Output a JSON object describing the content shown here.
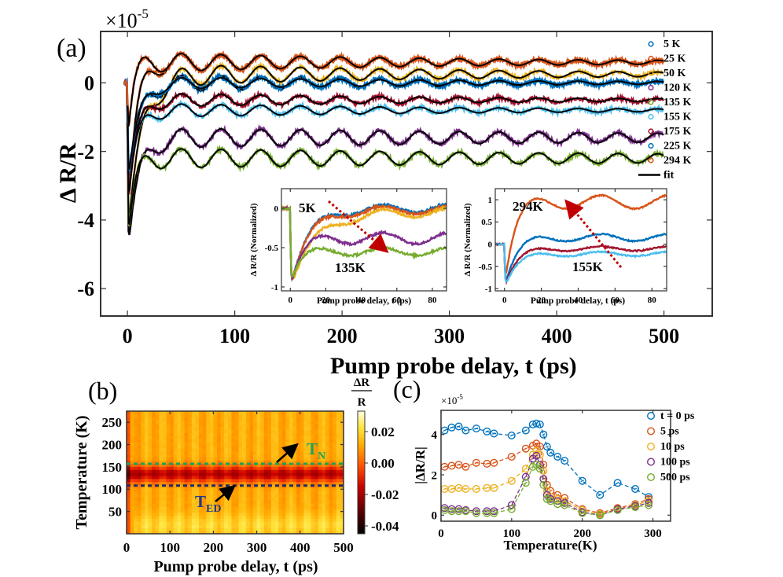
{
  "colors": {
    "5K": "#0072BD",
    "25K": "#D95319",
    "50K": "#EDB120",
    "120K": "#7E2F8E",
    "135K": "#77AC30",
    "155K": "#4DBEEE",
    "175K": "#A2142F",
    "225K": "#0072BD",
    "294K": "#D95319",
    "fit": "#000000",
    "TN_line": "#1aa35a",
    "TED_line": "#1f2a6b",
    "TN_label": "#1aa35a",
    "TED_label": "#1f3a8a",
    "arrow_red": "#c00000"
  },
  "chart_data": [
    {
      "id": "a",
      "panel_label": "(a)",
      "type": "line",
      "xlabel": "Pump probe delay, t (ps)",
      "ylabel": "Δ R/R",
      "scale_label": "×10",
      "scale_exponent": "-5",
      "xlim": [
        -25,
        545
      ],
      "ylim": [
        -6.8,
        1.5
      ],
      "xticks": [
        0,
        100,
        200,
        300,
        400,
        500
      ],
      "yticks": [
        -6,
        -4,
        -2,
        0
      ],
      "xtick_labels": [
        "0",
        "100",
        "200",
        "300",
        "400",
        "500"
      ],
      "ytick_labels": [
        "-6",
        "-4",
        "-2",
        "0"
      ],
      "series": [
        {
          "name": "5 K",
          "marker": "o",
          "color": "#0072BD",
          "dip": -3.4,
          "rise": 2.6,
          "rise_tau": 10,
          "baseline": 0.0,
          "amp": 0.28,
          "period": 37,
          "decay": 300
        },
        {
          "name": "25 K",
          "marker": "s",
          "color": "#D95319",
          "dip": -4.0,
          "rise": 3.4,
          "rise_tau": 8,
          "baseline": 0.6,
          "amp": 0.3,
          "period": 37,
          "decay": 300
        },
        {
          "name": "50 K",
          "marker": "^",
          "color": "#EDB120",
          "dip": -4.4,
          "rise": 3.2,
          "rise_tau": 14,
          "baseline": 0.25,
          "amp": 0.35,
          "period": 37,
          "decay": 300
        },
        {
          "name": "120 K",
          "marker": "d",
          "color": "#7E2F8E",
          "dip": -5.0,
          "rise": 4.5,
          "rise_tau": 10,
          "baseline": -1.6,
          "amp": 0.3,
          "period": 37,
          "decay": 600
        },
        {
          "name": "135 K",
          "marker": "*",
          "color": "#77AC30",
          "dip": -4.8,
          "rise": 4.0,
          "rise_tau": 6,
          "baseline": -2.2,
          "amp": 0.3,
          "period": 37,
          "decay": 600
        },
        {
          "name": "155 K",
          "marker": "+",
          "color": "#4DBEEE",
          "dip": -3.5,
          "rise": 3.2,
          "rise_tau": 8,
          "baseline": -0.8,
          "amp": 0.22,
          "period": 37,
          "decay": 300
        },
        {
          "name": "175 K",
          "marker": "x",
          "color": "#A2142F",
          "dip": -3.8,
          "rise": 3.6,
          "rise_tau": 8,
          "baseline": -0.5,
          "amp": 0.22,
          "period": 37,
          "decay": 300
        },
        {
          "name": "225 K",
          "marker": "p",
          "color": "#0072BD",
          "dip": -3.0,
          "rise": 2.9,
          "rise_tau": 10,
          "baseline": 0.0,
          "amp": 0.2,
          "period": 37,
          "decay": 300
        },
        {
          "name": "294 K",
          "marker": "h",
          "color": "#D95319",
          "dip": -1.8,
          "rise": 2.5,
          "rise_tau": 5,
          "baseline": 0.6,
          "amp": 0.3,
          "period": 37,
          "decay": 300
        }
      ],
      "legend": [
        "5 K",
        "25 K",
        "50 K",
        "120 K",
        "135 K",
        "155 K",
        "175 K",
        "225 K",
        "294 K",
        "fit"
      ],
      "legend_location": "top-right",
      "insets": [
        {
          "type": "line",
          "xlabel": "Pump probe delay, t (ps)",
          "ylabel": "Δ R/R (Normalized)",
          "xlim": [
            -5,
            88
          ],
          "ylim": [
            -1.05,
            0.25
          ],
          "xticks": [
            0,
            20,
            40,
            60,
            80
          ],
          "yticks": [
            -1,
            -0.5,
            0
          ],
          "xtick_labels": [
            "0",
            "20",
            "40",
            "60",
            "80"
          ],
          "ytick_labels": [
            "-1",
            "-0.5",
            "0"
          ],
          "annotations": [
            "5K",
            "135K"
          ],
          "series": [
            {
              "name": "5 K",
              "color": "#0072BD",
              "dip": -1.0,
              "rise": 1.0,
              "rise_tau": 10,
              "baseline": 0.0,
              "amp": 0.05,
              "period": 37,
              "decay": 300
            },
            {
              "name": "25 K",
              "color": "#D95319",
              "dip": -1.0,
              "rise": 0.98,
              "rise_tau": 10,
              "baseline": 0.0,
              "amp": 0.05,
              "period": 37,
              "decay": 300
            },
            {
              "name": "50 K",
              "color": "#EDB120",
              "dip": -1.0,
              "rise": 0.95,
              "rise_tau": 14,
              "baseline": 0.0,
              "amp": 0.06,
              "period": 37,
              "decay": 300
            },
            {
              "name": "120 K",
              "color": "#7E2F8E",
              "dip": -1.0,
              "rise": 0.62,
              "rise_tau": 6,
              "baseline": 0.0,
              "amp": 0.07,
              "period": 37,
              "decay": 300
            },
            {
              "name": "135 K",
              "color": "#77AC30",
              "dip": -1.0,
              "rise": 0.45,
              "rise_tau": 4,
              "baseline": 0.0,
              "amp": 0.05,
              "period": 37,
              "decay": 300
            }
          ]
        },
        {
          "type": "line",
          "xlabel": "Pump probe delay, t (ps)",
          "ylabel": "Δ R/R (Normalized)",
          "xlim": [
            -5,
            88
          ],
          "ylim": [
            -1.05,
            1.25
          ],
          "xticks": [
            0,
            20,
            40,
            60,
            80
          ],
          "yticks": [
            -1,
            -0.5,
            0,
            0.5,
            1
          ],
          "xtick_labels": [
            "0",
            "20",
            "40",
            "60",
            "80"
          ],
          "ytick_labels": [
            "-1",
            "-0.5",
            "0",
            "0.5",
            "1"
          ],
          "annotations": [
            "294K",
            "155K"
          ],
          "series": [
            {
              "name": "294 K",
              "color": "#D95319",
              "dip": -1.0,
              "rise": 1.95,
              "rise_tau": 5,
              "baseline": 0.0,
              "amp": 0.15,
              "period": 37,
              "decay": 300
            },
            {
              "name": "225 K",
              "color": "#0072BD",
              "dip": -1.0,
              "rise": 1.15,
              "rise_tau": 6,
              "baseline": 0.0,
              "amp": 0.08,
              "period": 37,
              "decay": 300
            },
            {
              "name": "175 K",
              "color": "#A2142F",
              "dip": -1.0,
              "rise": 0.9,
              "rise_tau": 6,
              "baseline": 0.0,
              "amp": 0.05,
              "period": 37,
              "decay": 300
            },
            {
              "name": "155 K",
              "color": "#4DBEEE",
              "dip": -1.0,
              "rise": 0.78,
              "rise_tau": 6,
              "baseline": 0.0,
              "amp": 0.05,
              "period": 37,
              "decay": 300
            }
          ]
        }
      ]
    },
    {
      "id": "b",
      "panel_label": "(b)",
      "type": "heatmap",
      "xlabel": "Pump probe delay, t (ps)",
      "ylabel": "Temperature (K)",
      "xlim": [
        0,
        500
      ],
      "ylim": [
        0,
        275
      ],
      "xticks": [
        0,
        100,
        200,
        300,
        400,
        500
      ],
      "yticks": [
        50,
        100,
        150,
        200,
        250
      ],
      "xtick_labels": [
        "0",
        "100",
        "200",
        "300",
        "400",
        "500"
      ],
      "ytick_labels": [
        "50",
        "100",
        "150",
        "200",
        "250"
      ],
      "colorbar_label_top": "ΔR",
      "colorbar_label_bottom": "R",
      "colorbar_ticks": [
        0.02,
        0.0,
        -0.02,
        -0.04
      ],
      "colorbar_tick_labels": [
        "0.02",
        "0.00",
        "-0.02",
        "-0.04"
      ],
      "clim": [
        -0.045,
        0.033
      ],
      "TN_label": "T",
      "TN_sub": "N",
      "TN_value": 157,
      "TED_label": "T",
      "TED_sub": "ED",
      "TED_value": 108
    },
    {
      "id": "c",
      "panel_label": "(c)",
      "type": "scatter",
      "xlabel": "Temperature(K)",
      "ylabel": "|ΔR/R|",
      "scale_label": "×10",
      "scale_exponent": "-5",
      "xlim": [
        0,
        325
      ],
      "ylim": [
        -0.3,
        5.2
      ],
      "xticks": [
        0,
        100,
        200,
        300
      ],
      "yticks": [
        0,
        2,
        4
      ],
      "xtick_labels": [
        "0",
        "100",
        "200",
        "300"
      ],
      "ytick_labels": [
        "0",
        "2",
        "4"
      ],
      "x": [
        5,
        15,
        25,
        35,
        50,
        65,
        75,
        100,
        120,
        130,
        135,
        140,
        145,
        150,
        155,
        165,
        175,
        200,
        225,
        250,
        275,
        294
      ],
      "series": [
        {
          "name": "t = 0 ps",
          "color": "#0072BD",
          "values": [
            4.2,
            4.35,
            4.4,
            4.2,
            4.3,
            4.15,
            4.05,
            3.95,
            4.2,
            4.5,
            4.55,
            4.5,
            4.0,
            3.4,
            3.1,
            2.9,
            2.7,
            1.7,
            1.0,
            1.6,
            1.3,
            0.9
          ]
        },
        {
          "name": "5 ps",
          "color": "#D95319",
          "values": [
            2.4,
            2.45,
            2.5,
            2.4,
            2.6,
            2.55,
            2.6,
            2.9,
            3.3,
            3.45,
            3.55,
            3.4,
            2.5,
            1.5,
            1.2,
            1.0,
            0.85,
            0.3,
            0.1,
            0.35,
            0.55,
            0.8
          ]
        },
        {
          "name": "10 ps",
          "color": "#EDB120",
          "values": [
            1.3,
            1.3,
            1.35,
            1.3,
            1.3,
            1.35,
            1.35,
            1.7,
            2.3,
            3.0,
            3.2,
            3.0,
            2.2,
            1.2,
            0.9,
            0.8,
            0.7,
            0.25,
            0.05,
            0.3,
            0.5,
            0.7
          ]
        },
        {
          "name": "100 ps",
          "color": "#7E2F8E",
          "values": [
            0.35,
            0.3,
            0.3,
            0.25,
            0.2,
            0.2,
            0.2,
            0.5,
            1.9,
            2.8,
            2.95,
            2.5,
            1.8,
            1.0,
            0.8,
            0.7,
            0.6,
            0.15,
            0.0,
            0.3,
            0.45,
            0.6
          ]
        },
        {
          "name": "500 ps",
          "color": "#77AC30",
          "values": [
            0.25,
            0.2,
            0.2,
            0.2,
            0.1,
            0.1,
            0.1,
            0.3,
            1.6,
            2.4,
            2.5,
            2.3,
            1.5,
            0.8,
            0.7,
            0.55,
            0.5,
            0.1,
            0.0,
            0.25,
            0.4,
            0.5
          ]
        }
      ],
      "legend": [
        "t = 0 ps",
        "5 ps",
        "10 ps",
        "100 ps",
        "500 ps"
      ],
      "legend_location": "top-right"
    }
  ]
}
